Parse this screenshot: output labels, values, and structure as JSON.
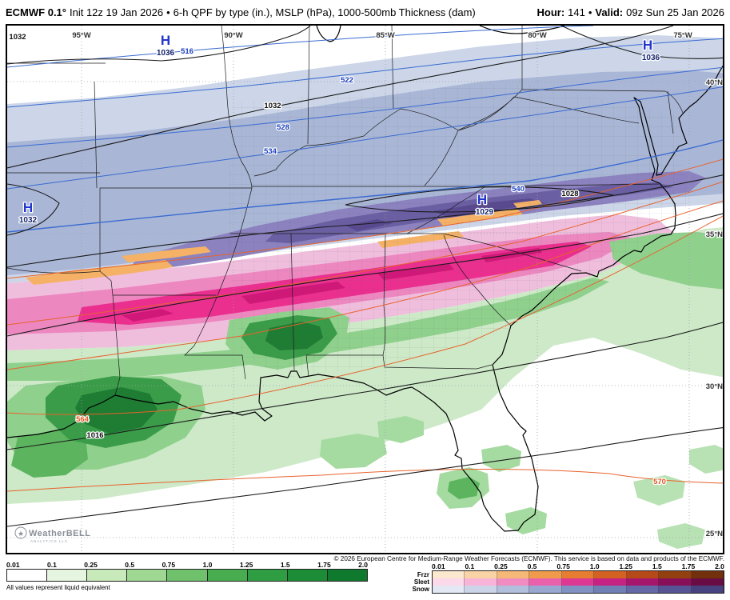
{
  "header": {
    "model": "ECMWF 0.1°",
    "init": "Init 12z 19 Jan 2026",
    "bullet": "•",
    "product": "6-h QPF by type (in.), MSLP (hPa), 1000-500mb Thickness (dam)",
    "hour_label": "Hour:",
    "hour_value": "141",
    "valid_label": "Valid:",
    "valid_value": "09z Sun 25 Jan 2026"
  },
  "map": {
    "lon_labels": [
      "95°W",
      "90°W",
      "85°W",
      "80°W",
      "75°W"
    ],
    "lat_labels": [
      "40°N",
      "35°N",
      "30°N",
      "25°N"
    ],
    "highs": [
      {
        "symbol": "H",
        "value": "1036"
      },
      {
        "symbol": "H",
        "value": "1036"
      },
      {
        "symbol": "H",
        "value": "1032"
      },
      {
        "symbol": "H",
        "value": "1029"
      }
    ],
    "contour_labels": [
      "1032",
      "516",
      "522",
      "528",
      "534",
      "540",
      "1032",
      "1028",
      "1016",
      "564",
      "570"
    ],
    "watermark": {
      "brand": "WeatherBELL",
      "sub": "ANALYTICS LLC"
    }
  },
  "footer": {
    "copyright": "© 2026 European Centre for Medium-Range Weather Forecasts (ECMWF). This service is based on data and products of the ECMWF.",
    "rain_scale": {
      "labels": [
        "0.01",
        "0.1",
        "0.25",
        "0.5",
        "0.75",
        "1.0",
        "1.25",
        "1.5",
        "1.75",
        "2.0"
      ],
      "colors": [
        "#ffffff",
        "#e6f5df",
        "#c8e9ba",
        "#9fd893",
        "#6fc16c",
        "#47ad4f",
        "#2f9e43",
        "#1d8c37",
        "#0f7a2e"
      ],
      "note": "All values represent liquid equivalent"
    },
    "ptype_scale": {
      "labels": [
        "0.01",
        "0.1",
        "0.25",
        "0.5",
        "0.75",
        "1.0",
        "1.25",
        "1.5",
        "1.75",
        "2.0"
      ],
      "rows": [
        {
          "label": "Frzr",
          "colors": [
            "#fce8cf",
            "#f9d2a5",
            "#f6b877",
            "#f09b4b",
            "#e67d30",
            "#d26122",
            "#b54a18",
            "#934010",
            "#73300c"
          ]
        },
        {
          "label": "Sleet",
          "colors": [
            "#fbd9ea",
            "#f7b4d8",
            "#f18cc3",
            "#e961ac",
            "#dd3994",
            "#c42383",
            "#a5166d",
            "#871058",
            "#690c44"
          ]
        },
        {
          "label": "Snow",
          "colors": [
            "#e3e8f4",
            "#cbd4e8",
            "#b1bedc",
            "#98a8d0",
            "#8092c2",
            "#7080b4",
            "#6468a6",
            "#565494",
            "#474180"
          ]
        }
      ]
    }
  },
  "colors": {
    "snow_light": "#ccd6e8",
    "snow_medium": "#a9b6d6",
    "snow_heavy": "#8b82bf",
    "snow_core": "#6b5fa3",
    "sleet_light": "#f0bedd",
    "sleet_medium": "#ec87c0",
    "sleet_core": "#ea2f8f",
    "freezing_rain": "#f5b266",
    "rain_light": "#cde9c8",
    "rain_medium": "#8fd08d",
    "rain_heavy": "#3a9c49",
    "rain_core": "#1e7c33",
    "thickness_cold": "#3a6bd0",
    "thickness_warm": "#e8622d",
    "mslp": "#1a1a1a"
  }
}
